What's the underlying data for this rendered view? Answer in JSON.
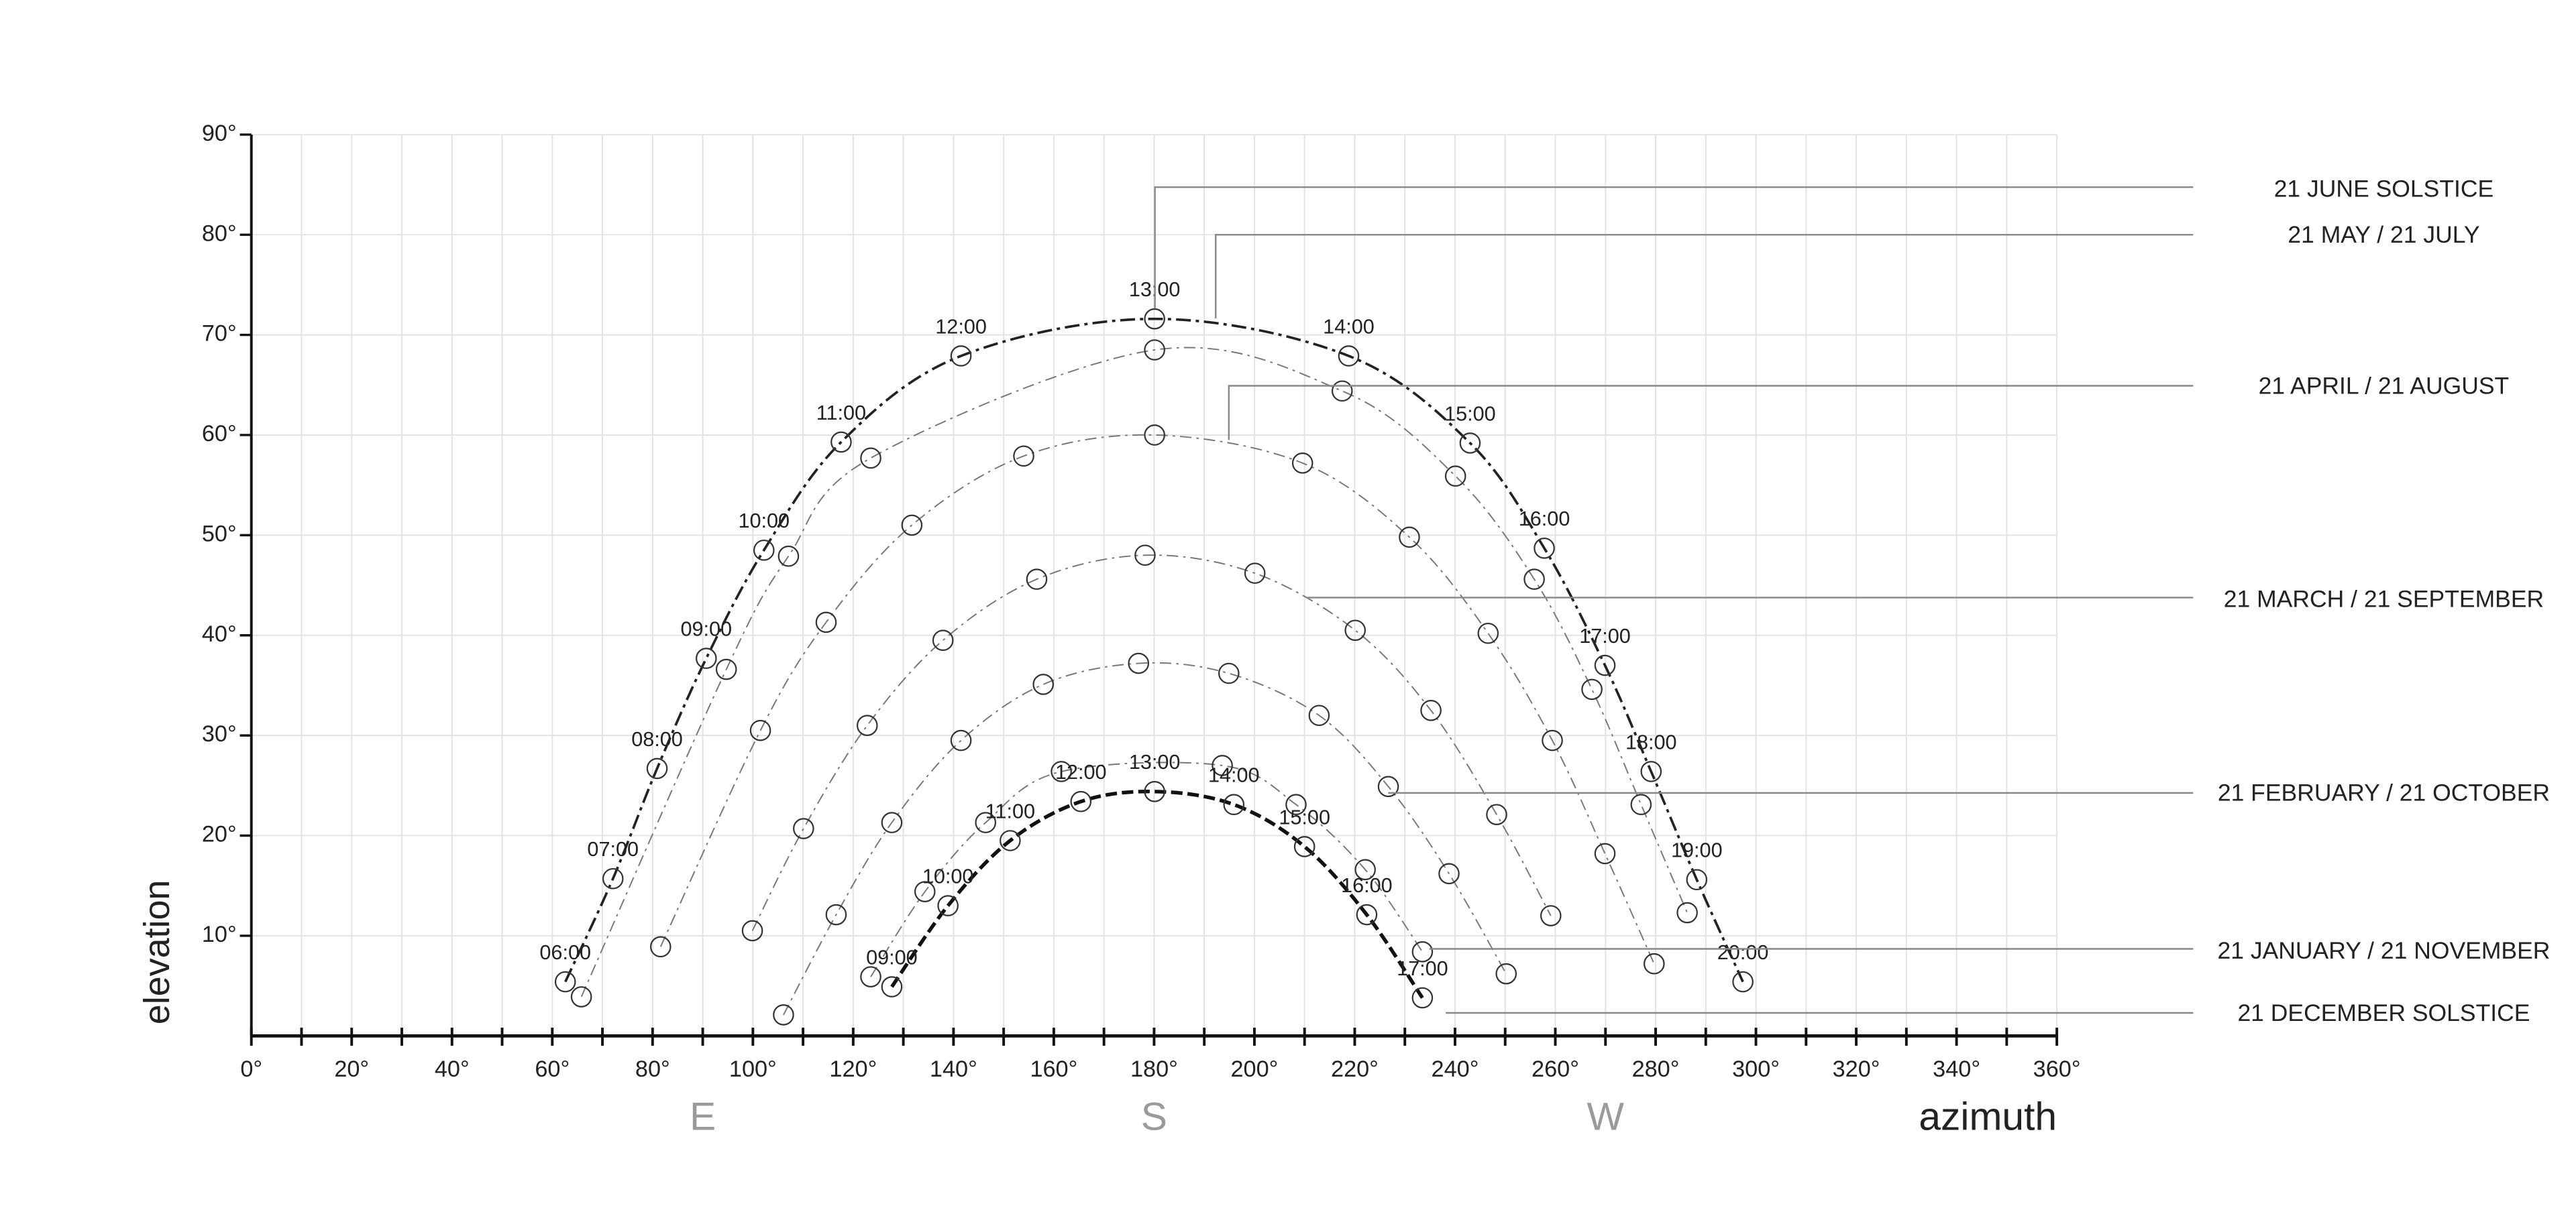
{
  "chart_data": {
    "type": "sunpath",
    "xlabel": "azimuth",
    "ylabel": "elevation",
    "xlim": [
      0,
      360
    ],
    "ylim": [
      0,
      90
    ],
    "grid": true,
    "xticks": [
      {
        "value": 0,
        "label": "0°"
      },
      {
        "value": 20,
        "label": "20°"
      },
      {
        "value": 40,
        "label": "40°"
      },
      {
        "value": 60,
        "label": "60°"
      },
      {
        "value": 80,
        "label": "80°"
      },
      {
        "value": 100,
        "label": "100°"
      },
      {
        "value": 120,
        "label": "120°"
      },
      {
        "value": 140,
        "label": "140°"
      },
      {
        "value": 160,
        "label": "160°"
      },
      {
        "value": 180,
        "label": "180°"
      },
      {
        "value": 200,
        "label": "200°"
      },
      {
        "value": 220,
        "label": "220°"
      },
      {
        "value": 240,
        "label": "240°"
      },
      {
        "value": 260,
        "label": "260°"
      },
      {
        "value": 280,
        "label": "280°"
      },
      {
        "value": 300,
        "label": "300°"
      },
      {
        "value": 320,
        "label": "320°"
      },
      {
        "value": 340,
        "label": "340°"
      },
      {
        "value": 360,
        "label": "360°"
      }
    ],
    "yticks": [
      {
        "value": 10,
        "label": "10°"
      },
      {
        "value": 20,
        "label": "20°"
      },
      {
        "value": 30,
        "label": "30°"
      },
      {
        "value": 40,
        "label": "40°"
      },
      {
        "value": 50,
        "label": "50°"
      },
      {
        "value": 60,
        "label": "60°"
      },
      {
        "value": 70,
        "label": "70°"
      },
      {
        "value": 80,
        "label": "80°"
      },
      {
        "value": 90,
        "label": "90°"
      }
    ],
    "compass": [
      {
        "value": 90,
        "label": "E"
      },
      {
        "value": 180,
        "label": "S"
      },
      {
        "value": 270,
        "label": "W"
      }
    ],
    "series": [
      {
        "name": "21 JUNE SOLSTICE",
        "color": "#222222",
        "x": [
          62.6,
          72.1,
          80.9,
          90.7,
          102.2,
          117.6,
          141.5,
          180.1,
          218.8,
          243.0,
          257.8,
          269.9,
          279.1,
          288.2,
          297.4
        ],
        "values": [
          5.4,
          15.7,
          26.7,
          37.7,
          48.5,
          59.3,
          67.9,
          71.6,
          67.9,
          59.2,
          48.7,
          37.0,
          26.4,
          15.6,
          5.4
        ],
        "times": [
          "06:00",
          "07:00",
          "08:00",
          "09:00",
          "10:00",
          "11:00",
          "12:00",
          "13:00",
          "14:00",
          "15:00",
          "16:00",
          "17:00",
          "18:00",
          "19:00",
          "20:00"
        ]
      },
      {
        "name": "21 MAY / 21 JULY",
        "color": "#777777",
        "x": [
          65.8,
          94.7,
          107.1,
          123.5,
          180.1,
          217.5,
          240.1,
          255.8,
          267.3,
          277.1,
          286.3
        ],
        "values": [
          3.9,
          36.6,
          47.9,
          57.7,
          68.5,
          64.4,
          55.9,
          45.6,
          34.6,
          23.1,
          12.3
        ]
      },
      {
        "name": "21 APRIL / 21 AUGUST",
        "color": "#777777",
        "x": [
          81.6,
          101.5,
          114.6,
          131.7,
          154,
          180.1,
          209.6,
          230.9,
          246.6,
          259.4,
          269.9,
          279.7
        ],
        "values": [
          8.9,
          30.5,
          41.3,
          51.0,
          57.9,
          60,
          57.2,
          49.8,
          40.2,
          29.5,
          18.2,
          7.2
        ]
      },
      {
        "name": "21 MARCH / 21 SEPTEMBER",
        "color": "#777777",
        "x": [
          99.9,
          110.1,
          122.8,
          137.9,
          156.6,
          178.2,
          200.1,
          220.1,
          235.2,
          248.3,
          259.1
        ],
        "values": [
          10.5,
          20.7,
          31,
          39.5,
          45.6,
          48,
          46.2,
          40.5,
          32.5,
          22.1,
          12.0
        ]
      },
      {
        "name": "21 FEBRUARY / 21 OCTOBER",
        "color": "#777777",
        "x": [
          106.1,
          116.6,
          127.7,
          141.5,
          157.9,
          176.9,
          194.9,
          212.9,
          226.7,
          238.8,
          250.2
        ],
        "values": [
          2.1,
          12.1,
          21.3,
          29.5,
          35.1,
          37.2,
          36.2,
          32.0,
          24.9,
          16.2,
          6.2
        ]
      },
      {
        "name": "21 JANUARY / 21 NOVEMBER",
        "color": "#777777",
        "x": [
          123.5,
          134.3,
          146.4,
          161.5,
          193.6,
          208.3,
          222.1,
          233.5
        ],
        "values": [
          5.9,
          14.4,
          21.3,
          26.4,
          27.0,
          23.1,
          16.6,
          8.4
        ]
      },
      {
        "name": "21 DECEMBER SOLSTICE",
        "color": "#111111",
        "x": [
          127.7,
          138.9,
          151.3,
          165.4,
          180.1,
          195.9,
          210,
          222.4,
          233.5
        ],
        "values": [
          4.9,
          13,
          19.5,
          23.4,
          24.4,
          23.1,
          18.9,
          12.1,
          3.8
        ],
        "times": [
          "09:00",
          "10:00",
          "11:00",
          "12:00",
          "13:00",
          "14:00",
          "15:00",
          "16:00",
          "17:00"
        ]
      }
    ]
  }
}
